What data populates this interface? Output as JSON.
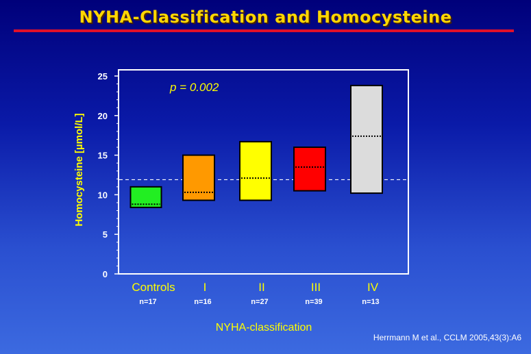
{
  "title": "NYHA-Classification and Homocysteine",
  "citation": "Herrmann M et al., CCLM 2005,43(3):A6",
  "chart_data": {
    "type": "box",
    "title": "NYHA-Classification and Homocysteine",
    "xlabel": "NYHA-classification",
    "ylabel": "Homocysteine  [µmol/L]",
    "ylim": [
      0,
      25
    ],
    "yticks": [
      0,
      5,
      10,
      15,
      20,
      25
    ],
    "annotation": "p = 0.002",
    "reference_line": 11.9,
    "categories": [
      "Controls",
      "I",
      "II",
      "III",
      "IV"
    ],
    "sample_sizes": [
      "n=17",
      "n=16",
      "n=27",
      "n=39",
      "n=13"
    ],
    "boxes": [
      {
        "low": 8.4,
        "high": 11.0,
        "median": 8.8,
        "color": "#22ee22"
      },
      {
        "low": 9.3,
        "high": 15.0,
        "median": 10.3,
        "color": "#ff9900"
      },
      {
        "low": 9.3,
        "high": 16.7,
        "median": 12.1,
        "color": "#ffff00"
      },
      {
        "low": 10.5,
        "high": 16.0,
        "median": 13.5,
        "color": "#ff0000"
      },
      {
        "low": 10.2,
        "high": 23.8,
        "median": 17.4,
        "color": "#dcdcdc"
      }
    ]
  }
}
